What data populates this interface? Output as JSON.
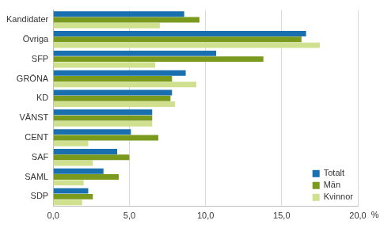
{
  "chart_data": {
    "type": "bar",
    "orientation": "horizontal",
    "categories": [
      "Kandidater",
      "Övriga",
      "SFP",
      "GRÖNA",
      "KD",
      "VÄNST",
      "CENT",
      "SAF",
      "SAML",
      "SDP"
    ],
    "series": [
      {
        "name": "Totalt",
        "color": "#1a6faf",
        "values": [
          8.6,
          16.6,
          10.7,
          8.7,
          7.8,
          6.5,
          5.1,
          4.2,
          3.3,
          2.3
        ]
      },
      {
        "name": "Män",
        "color": "#7a9a1e",
        "values": [
          9.6,
          16.3,
          13.8,
          7.8,
          7.7,
          6.5,
          6.9,
          5.0,
          4.3,
          2.6
        ]
      },
      {
        "name": "Kvinnor",
        "color": "#cfe08f",
        "values": [
          7.0,
          17.5,
          6.7,
          9.4,
          8.0,
          6.5,
          2.3,
          2.6,
          2.0,
          1.9
        ]
      }
    ],
    "xlabel": "%",
    "xlim": [
      0,
      20
    ],
    "xticks": [
      {
        "value": 0,
        "label": "0,0"
      },
      {
        "value": 5,
        "label": "5,0"
      },
      {
        "value": 10,
        "label": "10,0"
      },
      {
        "value": 15,
        "label": "15,0"
      },
      {
        "value": 20,
        "label": "20,0"
      }
    ],
    "grid": true,
    "legend": "lower right"
  }
}
